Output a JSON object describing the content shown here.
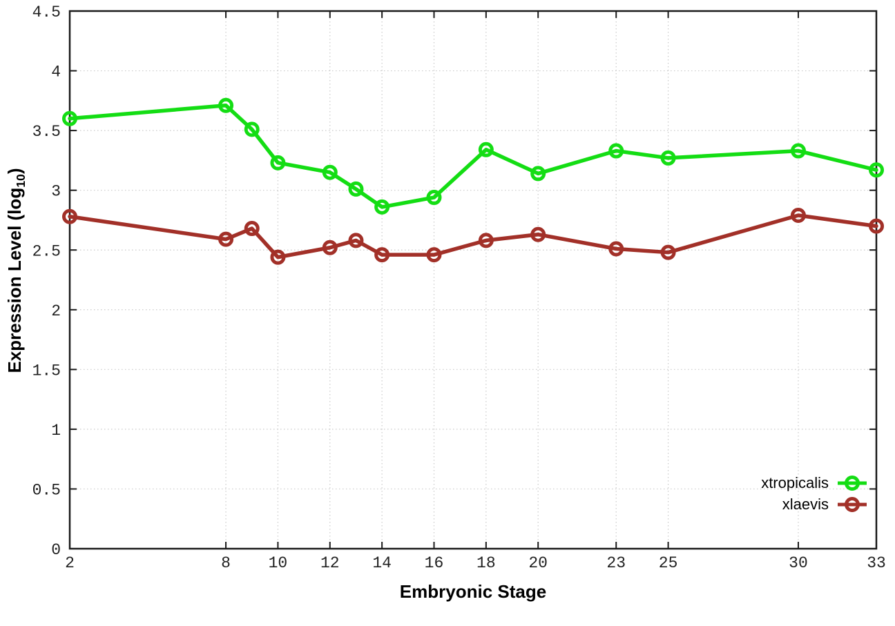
{
  "figure": {
    "background": "#ffffff",
    "axis_color": "#1a1a1a",
    "grid_color": "#c9c9c9",
    "tick_label_color": "#1f1f1f"
  },
  "chart_data": {
    "type": "line",
    "title": "",
    "xlabel": "Embryonic Stage",
    "ylabel": "Expression Level (log10)",
    "ylabel_parts": {
      "prefix": "Expression Level (log",
      "sub": "10",
      "suffix": ")"
    },
    "xlim": [
      2,
      33
    ],
    "ylim": [
      0,
      4.5
    ],
    "grid": true,
    "legend_position": "bottom-right",
    "x": [
      2,
      8,
      9,
      10,
      12,
      13,
      14,
      16,
      18,
      20,
      23,
      25,
      30,
      33
    ],
    "series": [
      {
        "name": "xtropicalis",
        "color": "#14dd14",
        "values": [
          3.6,
          3.71,
          3.51,
          3.23,
          3.15,
          3.01,
          2.86,
          2.94,
          3.34,
          3.14,
          3.33,
          3.27,
          3.33,
          3.17
        ]
      },
      {
        "name": "xlaevis",
        "color": "#a23028",
        "values": [
          2.78,
          2.59,
          2.68,
          2.44,
          2.52,
          2.58,
          2.46,
          2.46,
          2.58,
          2.63,
          2.51,
          2.48,
          2.79,
          2.7
        ]
      }
    ],
    "xticks": {
      "values": [
        2,
        8,
        10,
        12,
        14,
        16,
        18,
        20,
        23,
        25,
        30,
        33
      ],
      "labels": [
        "2",
        "8",
        "10",
        "12",
        "14",
        "16",
        "18",
        "20",
        "23",
        "25",
        "30",
        "33"
      ]
    },
    "yticks": {
      "values": [
        0,
        0.5,
        1,
        1.5,
        2,
        2.5,
        3,
        3.5,
        4,
        4.5
      ],
      "labels": [
        "0",
        "0.5",
        "1",
        "1.5",
        "2",
        "2.5",
        "3",
        "3.5",
        "4",
        "4.5"
      ]
    }
  }
}
